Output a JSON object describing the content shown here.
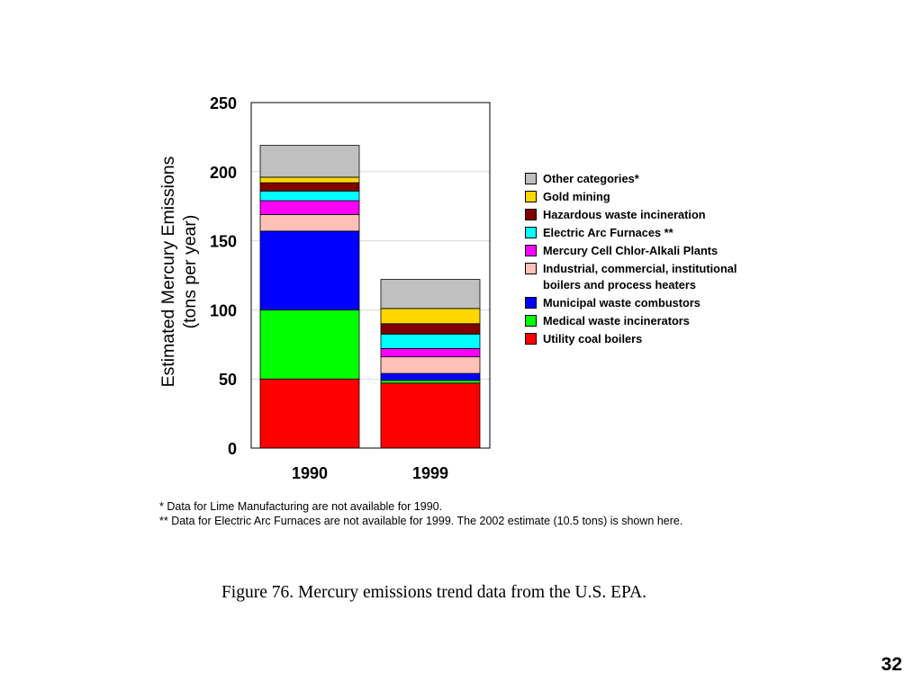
{
  "chart_data": {
    "type": "bar",
    "stacked": true,
    "categories": [
      "1990",
      "1999"
    ],
    "ylabel": "Estimated Mercury Emissions\n(tons per year)",
    "ylim": [
      0,
      250
    ],
    "yticks": [
      "0",
      "50",
      "100",
      "150",
      "200",
      "250"
    ],
    "grid": true,
    "legend_position": "right",
    "series": [
      {
        "name": "Utility coal boilers",
        "color": "#ff0000",
        "values": [
          50,
          47
        ]
      },
      {
        "name": "Medical waste incinerators",
        "color": "#00ff00",
        "values": [
          50,
          2
        ]
      },
      {
        "name": "Municipal waste combustors",
        "color": "#0000ff",
        "values": [
          57,
          5
        ]
      },
      {
        "name": "Industrial, commercial, institutional boilers and process heaters",
        "color": "#ffc0b8",
        "values": [
          12,
          12
        ]
      },
      {
        "name": "Mercury Cell Chlor-Alkali Plants",
        "color": "#ff00ff",
        "values": [
          10,
          6
        ]
      },
      {
        "name": "Electric Arc Furnaces **",
        "color": "#00ffff",
        "values": [
          7,
          10.5
        ]
      },
      {
        "name": "Hazardous waste incineration",
        "color": "#800000",
        "values": [
          6,
          7.5
        ]
      },
      {
        "name": "Gold mining",
        "color": "#ffd700",
        "values": [
          4,
          11
        ]
      },
      {
        "name": "Other categories*",
        "color": "#c0c0c0",
        "values": [
          23,
          21
        ]
      }
    ]
  },
  "legend": {
    "items": [
      {
        "label": "Other categories*",
        "color": "#c0c0c0"
      },
      {
        "label": "Gold mining",
        "color": "#ffd700"
      },
      {
        "label": "Hazardous waste incineration",
        "color": "#800000"
      },
      {
        "label": "Electric Arc Furnaces **",
        "color": "#00ffff"
      },
      {
        "label": "Mercury Cell Chlor-Alkali Plants",
        "color": "#ff00ff"
      },
      {
        "label": "Industrial, commercial, institutional boilers and process heaters",
        "color": "#ffc0b8"
      },
      {
        "label": "Municipal waste combustors",
        "color": "#0000ff"
      },
      {
        "label": "Medical waste incinerators",
        "color": "#00ff00"
      },
      {
        "label": "Utility coal boilers",
        "color": "#ff0000"
      }
    ]
  },
  "footnotes": {
    "line1": "* Data for Lime Manufacturing are not available for 1990.",
    "line2": "** Data for Electric Arc Furnaces are not available for 1999. The 2002 estimate (10.5 tons) is shown here."
  },
  "caption": "Figure 76. Mercury emissions trend data from the U.S. EPA.",
  "page_number": "32"
}
